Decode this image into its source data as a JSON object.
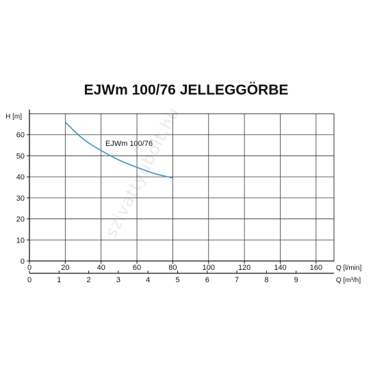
{
  "chart_data": {
    "type": "line",
    "title": "EJWm 100/76 JELLEGGÖRBE",
    "ylabel": "H [m]",
    "xlabel": "Q [l/min]",
    "x2label": "Q [m³/h]",
    "xlim": [
      0,
      170
    ],
    "ylim": [
      0,
      70
    ],
    "x_ticks": [
      0,
      20,
      40,
      60,
      80,
      100,
      120,
      140,
      160
    ],
    "x2_ticks": [
      0,
      1,
      2,
      3,
      4,
      5,
      6,
      7,
      8,
      9
    ],
    "y_ticks": [
      0,
      10,
      20,
      30,
      40,
      50,
      60
    ],
    "grid": true,
    "series": [
      {
        "name": "EJWm 100/76",
        "color": "#3a8fc4",
        "x": [
          20,
          30,
          40,
          50,
          60,
          70,
          80
        ],
        "y": [
          66,
          58,
          52.5,
          48,
          44.5,
          41.5,
          39.5
        ]
      }
    ]
  },
  "watermark": "szivattyubolt.hu"
}
